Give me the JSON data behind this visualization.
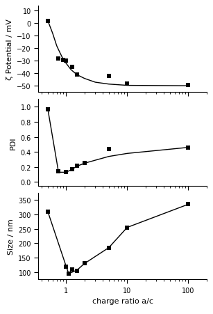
{
  "zeta_x": [
    0.5,
    0.75,
    0.9,
    1.0,
    1.25,
    1.5,
    5.0,
    10.0,
    100.0
  ],
  "zeta_y": [
    2,
    -28,
    -29,
    -30,
    -35,
    -41,
    -42,
    -48,
    -49
  ],
  "zeta_curve_x": [
    0.5,
    0.6,
    0.7,
    0.8,
    0.9,
    1.0,
    1.2,
    1.5,
    2.0,
    3.0,
    5.0,
    10.0,
    100.0
  ],
  "zeta_curve_y": [
    2,
    -8,
    -18,
    -24,
    -29,
    -32,
    -37,
    -41,
    -44,
    -47,
    -48.5,
    -49.5,
    -49.8
  ],
  "zeta_ylim": [
    -55,
    14
  ],
  "zeta_yticks": [
    10,
    0,
    -10,
    -20,
    -30,
    -40,
    -50
  ],
  "zeta_ylabel": "ζ Potential / mV",
  "pdi_x": [
    0.5,
    0.75,
    1.0,
    1.25,
    1.5,
    2.0,
    5.0,
    100.0
  ],
  "pdi_y": [
    0.97,
    0.14,
    0.13,
    0.17,
    0.22,
    0.25,
    0.44,
    0.46
  ],
  "pdi_curve_x": [
    0.5,
    0.75,
    1.0,
    1.25,
    1.5,
    2.0,
    3.0,
    5.0,
    10.0,
    100.0
  ],
  "pdi_curve_y": [
    0.97,
    0.13,
    0.13,
    0.17,
    0.21,
    0.25,
    0.29,
    0.34,
    0.38,
    0.46
  ],
  "pdi_ylim": [
    -0.05,
    1.1
  ],
  "pdi_yticks": [
    0.0,
    0.2,
    0.4,
    0.6,
    0.8,
    1.0
  ],
  "pdi_ylabel": "PDI",
  "size_x": [
    0.5,
    1.0,
    1.1,
    1.25,
    1.5,
    2.0,
    5.0,
    10.0,
    100.0
  ],
  "size_y": [
    310,
    120,
    95,
    110,
    105,
    130,
    185,
    255,
    335
  ],
  "size_curve_x": [
    0.5,
    1.0,
    1.1,
    1.5,
    2.0,
    5.0,
    10.0,
    100.0
  ],
  "size_curve_y": [
    310,
    120,
    95,
    107,
    130,
    185,
    255,
    335
  ],
  "size_ylim": [
    75,
    375
  ],
  "size_yticks": [
    100,
    150,
    200,
    250,
    300,
    350
  ],
  "size_ylabel": "Size / nm",
  "xlabel": "charge ratio a/c",
  "xlim": [
    0.35,
    200
  ],
  "xtick_locs": [
    1,
    10,
    100
  ],
  "xtick_labels": [
    "1",
    "10",
    "100"
  ],
  "marker": "s",
  "markersize": 5,
  "linewidth": 1.0,
  "linecolor": "#000000",
  "markercolor": "#000000",
  "background": "#ffffff"
}
